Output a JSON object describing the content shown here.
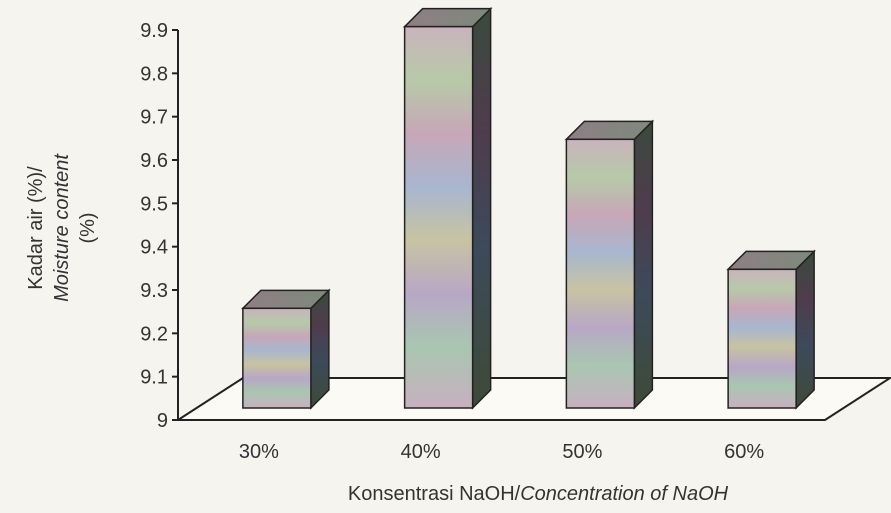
{
  "chart_data": {
    "type": "bar",
    "categories": [
      "30%",
      "40%",
      "50%",
      "60%"
    ],
    "values": [
      9.23,
      9.88,
      9.62,
      9.32
    ],
    "ylim": [
      9,
      9.9
    ],
    "yticks": [
      "9",
      "9.1",
      "9.2",
      "9.3",
      "9.4",
      "9.5",
      "9.6",
      "9.7",
      "9.8",
      "9.9"
    ],
    "ylabel": {
      "line1": "Kadar air (%)/",
      "line2": "Moisture content",
      "line3": "(%)"
    },
    "xlabel": {
      "regular": "Konsentrasi NaOH/",
      "italic": "Concentration of NaOH"
    },
    "grid": false,
    "legend": "none",
    "style": "3d-column"
  }
}
